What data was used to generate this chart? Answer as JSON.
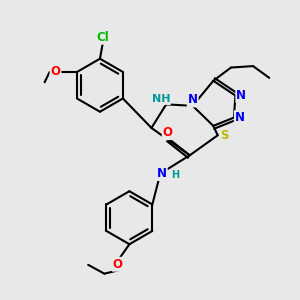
{
  "bg_color": "#e8e8e8",
  "bond_color": "#000000",
  "bond_lw": 1.5,
  "atom_colors": {
    "Cl": "#00bb00",
    "O": "#ff0000",
    "N": "#0000ee",
    "NH": "#009999",
    "S": "#bbbb00",
    "H": "#009999"
  },
  "font_size": 8.5
}
